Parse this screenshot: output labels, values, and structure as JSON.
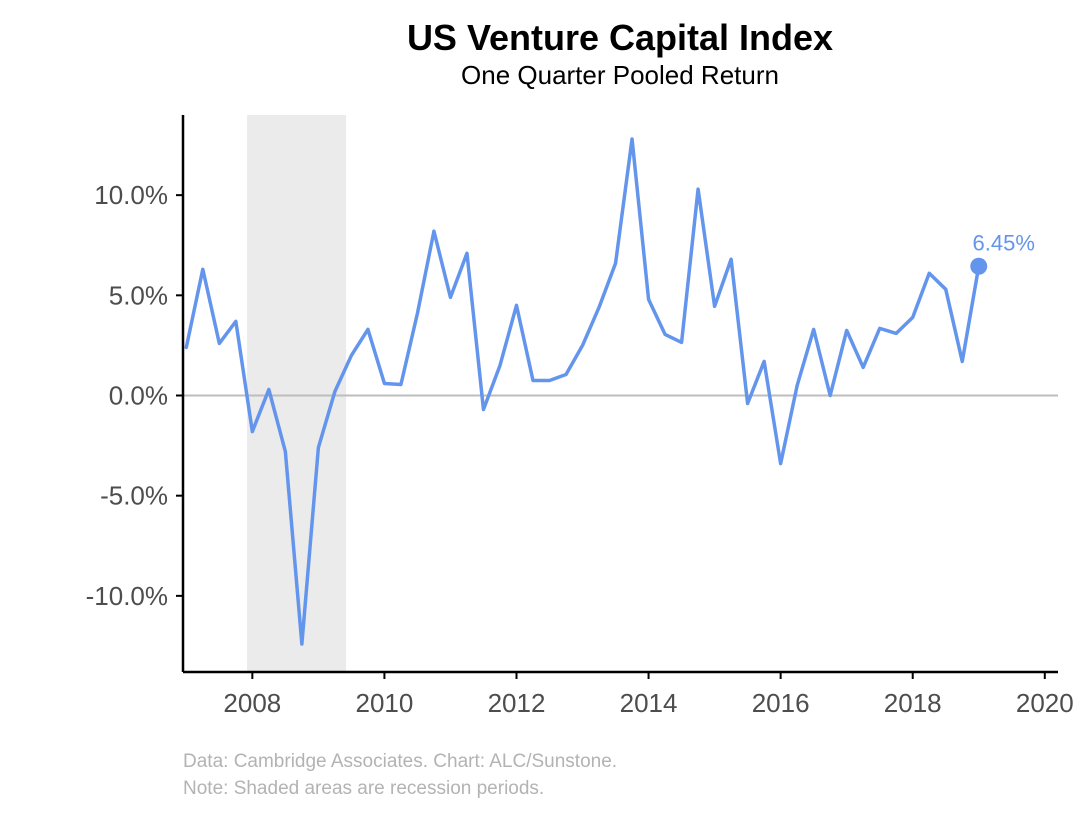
{
  "chart_data": {
    "type": "line",
    "title": "US Venture Capital Index",
    "subtitle": "One Quarter Pooled Return",
    "xlabel": "",
    "ylabel": "",
    "xlim": [
      2006.95,
      2020.2
    ],
    "ylim": [
      -13.8,
      14
    ],
    "x_ticks": [
      2008,
      2010,
      2012,
      2014,
      2016,
      2018,
      2020
    ],
    "y_ticks": [
      10,
      5,
      0,
      -5,
      -10
    ],
    "y_tick_labels": [
      "10.0%",
      "5.0%",
      "0.0%",
      "-5.0%",
      "-10.0%"
    ],
    "x_tick_labels": [
      "2008",
      "2010",
      "2012",
      "2014",
      "2016",
      "2018",
      "2020"
    ],
    "zero_line": true,
    "grid": false,
    "recession_periods": [
      {
        "start": 2007.92,
        "end": 2009.42
      }
    ],
    "series": [
      {
        "name": "One Quarter Pooled Return",
        "color": "#6495ED",
        "x": [
          2007.0,
          2007.25,
          2007.5,
          2007.75,
          2008.0,
          2008.25,
          2008.5,
          2008.75,
          2009.0,
          2009.25,
          2009.5,
          2009.75,
          2010.0,
          2010.25,
          2010.5,
          2010.75,
          2011.0,
          2011.25,
          2011.5,
          2011.75,
          2012.0,
          2012.25,
          2012.5,
          2012.75,
          2013.0,
          2013.25,
          2013.5,
          2013.75,
          2014.0,
          2014.25,
          2014.5,
          2014.75,
          2015.0,
          2015.25,
          2015.5,
          2015.75,
          2016.0,
          2016.25,
          2016.5,
          2016.75,
          2017.0,
          2017.25,
          2017.5,
          2017.75,
          2018.0,
          2018.25,
          2018.5,
          2018.75,
          2019.0
        ],
        "values": [
          2.4,
          6.3,
          2.6,
          3.7,
          -1.8,
          0.3,
          -2.8,
          -12.4,
          -2.6,
          0.2,
          2.0,
          3.3,
          0.6,
          0.55,
          4.1,
          8.2,
          4.9,
          7.1,
          -0.7,
          1.5,
          4.5,
          0.75,
          0.75,
          1.05,
          2.5,
          4.4,
          6.6,
          12.8,
          4.8,
          3.05,
          2.65,
          10.3,
          4.45,
          6.8,
          -0.4,
          1.7,
          -3.4,
          0.5,
          3.3,
          0.0,
          3.25,
          1.4,
          3.35,
          3.1,
          3.9,
          6.1,
          5.3,
          1.7,
          6.45
        ]
      }
    ],
    "annotation": {
      "x": 2019.0,
      "y": 6.45,
      "text": "6.45%"
    },
    "caption_lines": [
      "Data: Cambridge Associates. Chart: ALC/Sunstone.",
      "Note: Shaded areas are recession periods."
    ],
    "colors": {
      "line": "#6495ED",
      "recession_fill": "#ebebeb",
      "zero_line": "#bdbdbd",
      "axis": "#000000",
      "tick_text": "#4d4d4d",
      "caption": "#b3b3b3"
    }
  }
}
